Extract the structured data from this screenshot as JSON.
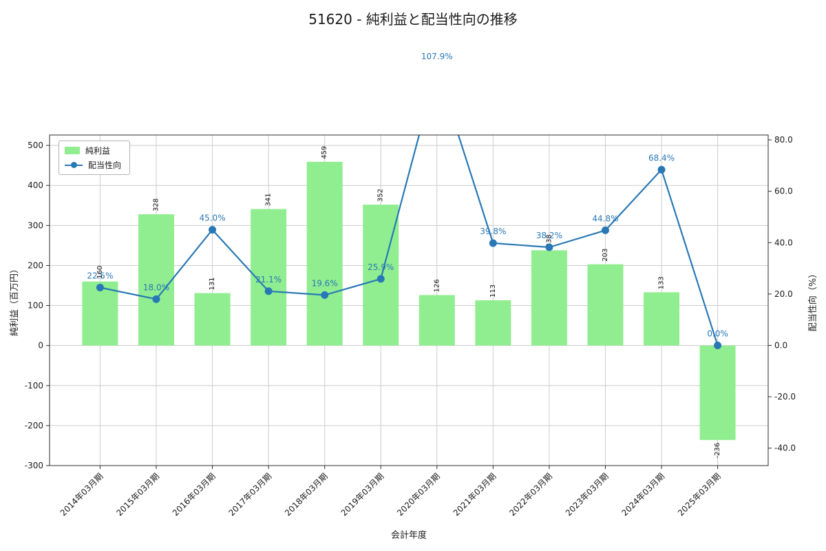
{
  "chart_data": {
    "type": "bar+line",
    "title": "51620 - 純利益と配当性向の推移",
    "xlabel": "会計年度",
    "ylabel_left": "純利益（百万円）",
    "ylabel_right": "配当性向（%）",
    "grid": true,
    "grid_color": "#cccccc",
    "legend_position": "upper left",
    "categories": [
      "2014年03月期",
      "2015年03月期",
      "2016年03月期",
      "2017年03月期",
      "2018年03月期",
      "2019年03月期",
      "2020年03月期",
      "2021年03月期",
      "2022年03月期",
      "2023年03月期",
      "2024年03月期",
      "2025年03月期"
    ],
    "series": [
      {
        "name": "純利益",
        "type": "bar",
        "color": "#90ee90",
        "values": [
          160,
          328,
          131,
          341,
          459,
          352,
          126,
          113,
          238,
          203,
          133,
          -236
        ],
        "value_labels": [
          "160",
          "328",
          "131",
          "341",
          "459",
          "352",
          "126",
          "113",
          "238",
          "203",
          "133",
          "-236"
        ]
      },
      {
        "name": "配当性向",
        "type": "line",
        "color": "#2878b5",
        "values": [
          22.5,
          18.0,
          45.0,
          21.1,
          19.6,
          25.9,
          107.9,
          39.8,
          38.2,
          44.8,
          68.4,
          0.0
        ],
        "point_labels": [
          "22.5%",
          "18.0%",
          "45.0%",
          "21.1%",
          "19.6%",
          "25.9%",
          "107.9%",
          "39.8%",
          "38.2%",
          "44.8%",
          "68.4%",
          "0.0%"
        ]
      }
    ],
    "y_left": {
      "lim": [
        -300,
        526
      ],
      "ticks": [
        -300,
        -200,
        -100,
        0,
        100,
        200,
        300,
        400,
        500
      ],
      "tick_labels": [
        "-300",
        "-200",
        "-100",
        "0",
        "100",
        "200",
        "300",
        "400",
        "500"
      ]
    },
    "y_right": {
      "lim": [
        -46.8,
        81.9
      ],
      "ticks": [
        -40,
        -20,
        0,
        20,
        40,
        60,
        80
      ],
      "tick_labels": [
        "-40.0",
        "-20.0",
        "0.0",
        "20.0",
        "40.0",
        "60.0",
        "80.0"
      ]
    }
  },
  "legend": {
    "items": [
      {
        "label": "純利益",
        "type": "bar",
        "color": "#90ee90"
      },
      {
        "label": "配当性向",
        "type": "line",
        "color": "#2878b5"
      }
    ]
  }
}
